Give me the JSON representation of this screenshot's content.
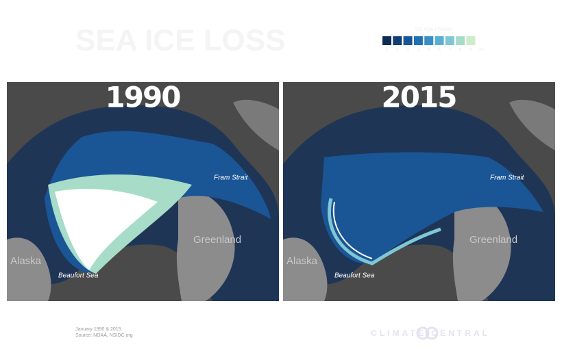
{
  "header": {
    "title": "SEA ICE LOSS"
  },
  "legend": {
    "title": "Ice Age (Years)",
    "items": [
      {
        "color": "#0d2b52",
        "label": "1"
      },
      {
        "color": "#133e74",
        "label": "2"
      },
      {
        "color": "#1a5596",
        "label": "3"
      },
      {
        "color": "#2070b4",
        "label": "4"
      },
      {
        "color": "#3a8ec7",
        "label": "5"
      },
      {
        "color": "#5aaed3",
        "label": "6"
      },
      {
        "color": "#7fc7d4",
        "label": "7"
      },
      {
        "color": "#a6dcc8",
        "label": "8"
      },
      {
        "color": "#cdeccb",
        "label": "9"
      },
      {
        "color": "#ffffff",
        "label": "10+"
      }
    ]
  },
  "maps": [
    {
      "year": "1990",
      "fram": "Fram Strait",
      "greenland": "Greenland",
      "alaska": "Alaska",
      "beaufort": "Beaufort Sea"
    },
    {
      "year": "2015",
      "fram": "Fram Strait",
      "greenland": "Greenland",
      "alaska": "Alaska",
      "beaufort": "Beaufort Sea"
    }
  ],
  "footer": {
    "note": "January 1990 & 2015.",
    "source": "Source: NOAA, NSIDC.org",
    "brand": "CLIMATE CENTRAL"
  }
}
